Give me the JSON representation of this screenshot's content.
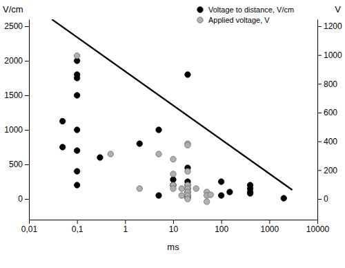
{
  "chart_data": {
    "type": "scatter",
    "log": "x",
    "legend": "upper right",
    "x_label": "ms",
    "y_label": "V/cm",
    "y2_label": "V",
    "xlim": [
      0.01,
      10000
    ],
    "xticks": [
      {
        "value": 0.01,
        "label": "0,01"
      },
      {
        "value": 0.1,
        "label": "0,1"
      },
      1,
      10,
      100,
      1000,
      10000
    ],
    "ylim": [
      -300,
      2600
    ],
    "yticks": [
      0,
      500,
      1000,
      1500,
      2000,
      2500
    ],
    "y2lim": [
      -144,
      1248
    ],
    "y2ticks": [
      0,
      200,
      400,
      600,
      800,
      1000,
      1200
    ],
    "series": [
      {
        "name": "Voltage to distance, V/cm",
        "color": "#000000",
        "marker": "circle",
        "x": [
          0.05,
          0.05,
          0.1,
          0.1,
          0.1,
          0.1,
          0.1,
          0.1,
          0.1,
          0.1,
          0.3,
          2,
          5,
          5,
          10,
          10,
          20,
          20,
          20,
          20,
          20,
          20,
          20,
          20,
          100,
          100,
          150,
          400,
          400,
          400,
          400,
          2000
        ],
        "values": [
          1125,
          750,
          2000,
          1800,
          1750,
          1500,
          1000,
          700,
          400,
          200,
          600,
          800,
          1000,
          50,
          280,
          200,
          1800,
          450,
          250,
          200,
          150,
          100,
          50,
          20,
          250,
          50,
          100,
          200,
          150,
          100,
          80,
          10
        ]
      },
      {
        "name": "Applied voltage, V",
        "color": "#b0b0b0",
        "marker": "circle",
        "axis": "y2",
        "x": [
          0.1,
          0.5,
          2,
          5,
          10,
          10,
          10,
          10,
          15,
          15,
          20,
          20,
          20,
          20,
          20,
          20,
          20,
          20,
          30,
          50,
          50,
          50,
          60
        ],
        "values": [
          995,
          312,
          72,
          312,
          276,
          173,
          96,
          72,
          72,
          24,
          384,
          374,
          192,
          96,
          72,
          48,
          24,
          0,
          72,
          48,
          24,
          -19,
          29
        ]
      },
      {
        "type": "line",
        "color": "#000000",
        "line_style": "solid",
        "x": [
          0.03,
          3000
        ],
        "values": [
          2600,
          130
        ]
      }
    ]
  }
}
